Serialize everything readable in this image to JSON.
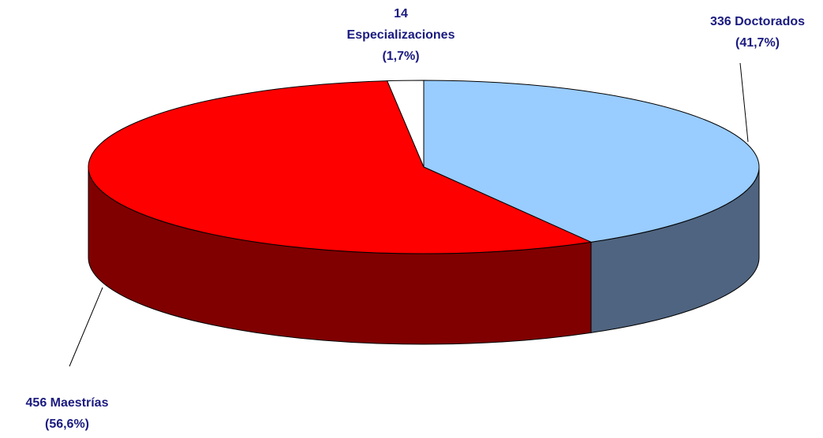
{
  "chart_data": {
    "type": "pie3d",
    "values": [
      336,
      456,
      14
    ],
    "value_labels": [
      [
        "336 Doctorados",
        "(41,7%)"
      ],
      [
        "456 Maestrías",
        "(56,6%)"
      ],
      [
        "14",
        "Especializaciones",
        "(1,7%)"
      ]
    ],
    "colors": [
      "#99ccff",
      "#ff0000",
      "#ffffff"
    ],
    "side_colors": [
      "#4f6480",
      "#800000",
      "#808080"
    ]
  }
}
